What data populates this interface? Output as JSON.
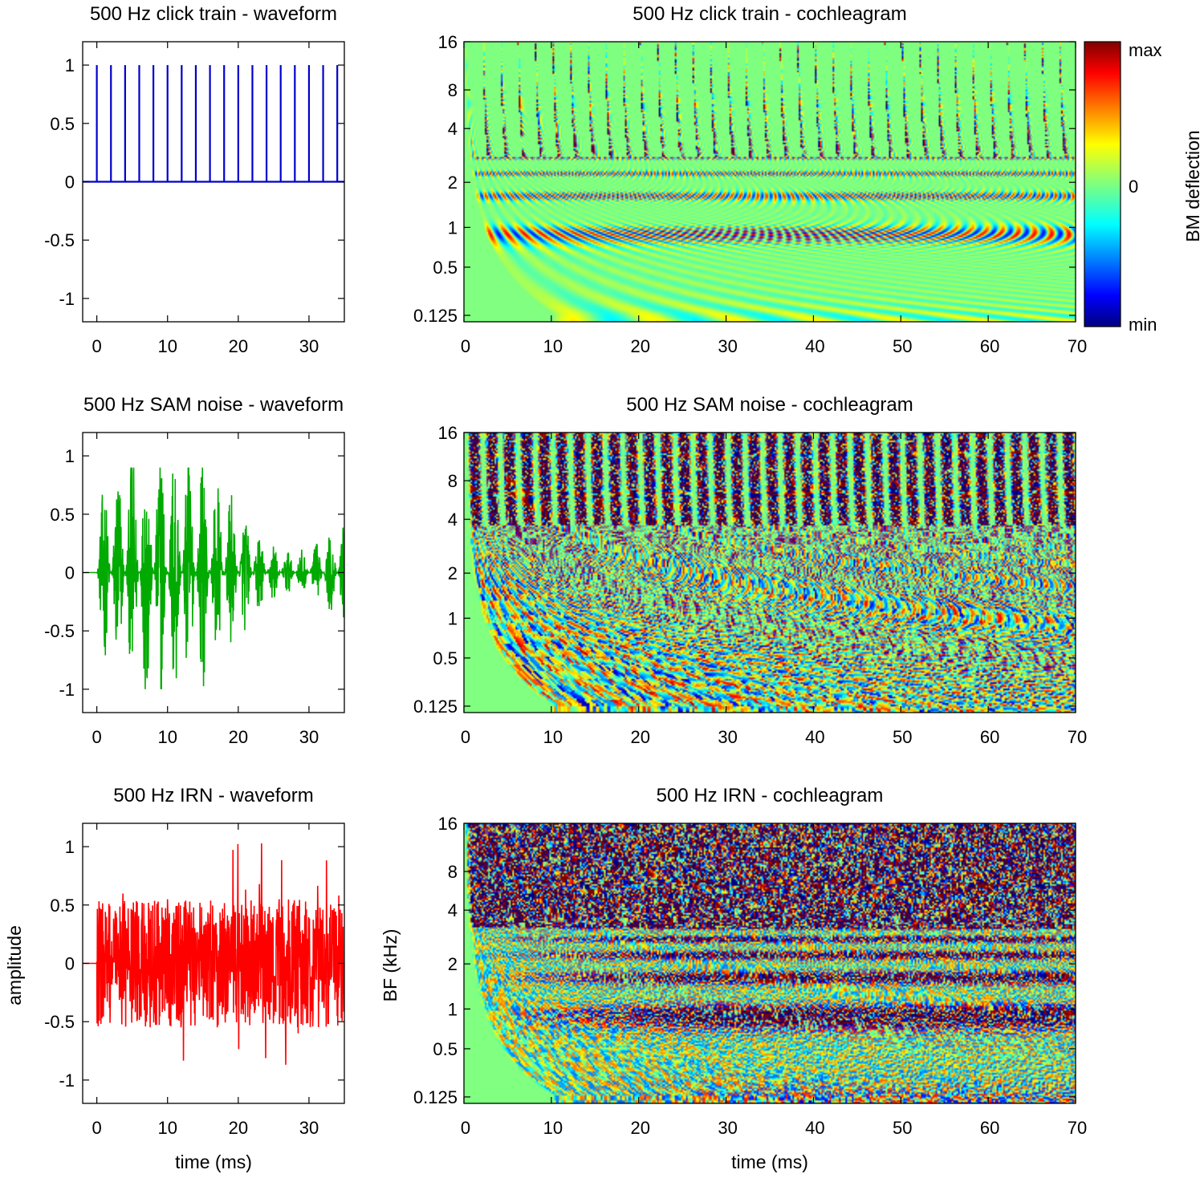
{
  "chart_data": [
    {
      "type": "line",
      "title": "500 Hz click train - waveform",
      "xlabel": "",
      "ylabel": "",
      "xlim": [
        -2,
        35
      ],
      "ylim": [
        -1.2,
        1.2
      ],
      "xticks": [
        0,
        10,
        20,
        30
      ],
      "yticks": [
        1,
        0.5,
        0,
        -0.5,
        -1
      ],
      "color": "#0000cc",
      "series": [
        {
          "kind": "clicks",
          "period_ms": 2,
          "start_ms": 0,
          "end_ms": 34,
          "amplitude": 1
        }
      ]
    },
    {
      "type": "heatmap",
      "title": "500 Hz click train - cochleagram",
      "xlabel": "",
      "ylabel": "",
      "xlim": [
        0,
        70
      ],
      "xticks": [
        0,
        10,
        20,
        30,
        40,
        50,
        60,
        70
      ],
      "yticks": [
        "16",
        "8",
        "4",
        "2",
        "1",
        "0.5",
        "0.125"
      ],
      "pattern": "click"
    },
    {
      "type": "line",
      "title": "500 Hz SAM noise - waveform",
      "xlabel": "",
      "ylabel": "",
      "xlim": [
        -2,
        35
      ],
      "ylim": [
        -1.2,
        1.2
      ],
      "xticks": [
        0,
        10,
        20,
        30
      ],
      "yticks": [
        1,
        0.5,
        0,
        -0.5,
        -1
      ],
      "color": "#00aa00",
      "series": [
        {
          "kind": "sam-noise",
          "modulation_hz": 500,
          "start_ms": 0,
          "end_ms": 35,
          "peak": 0.9,
          "trough": -1.0
        }
      ]
    },
    {
      "type": "heatmap",
      "title": "500 Hz SAM noise - cochleagram",
      "xlabel": "",
      "ylabel": "",
      "xlim": [
        0,
        70
      ],
      "xticks": [
        0,
        10,
        20,
        30,
        40,
        50,
        60,
        70
      ],
      "yticks": [
        "16",
        "8",
        "4",
        "2",
        "1",
        "0.5",
        "0.125"
      ],
      "pattern": "sam"
    },
    {
      "type": "line",
      "title": "500 Hz IRN - waveform",
      "xlabel": "time (ms)",
      "ylabel": "amplitude",
      "xlim": [
        -2,
        35
      ],
      "ylim": [
        -1.2,
        1.2
      ],
      "xticks": [
        0,
        10,
        20,
        30
      ],
      "yticks": [
        1,
        0.5,
        0,
        -0.5,
        -1
      ],
      "color": "#ff0000",
      "series": [
        {
          "kind": "irn-noise",
          "start_ms": 0,
          "end_ms": 35,
          "peak": 1.1,
          "trough": -1.1
        }
      ]
    },
    {
      "type": "heatmap",
      "title": "500 Hz IRN - cochleagram",
      "xlabel": "time (ms)",
      "ylabel": "BF (kHz)",
      "xlim": [
        0,
        70
      ],
      "xticks": [
        0,
        10,
        20,
        30,
        40,
        50,
        60,
        70
      ],
      "yticks": [
        "16",
        "8",
        "4",
        "2",
        "1",
        "0.5",
        "0.125"
      ],
      "pattern": "irn"
    }
  ],
  "colorbar": {
    "label": "BM deflection",
    "ticks": [
      "max",
      "0",
      "min"
    ],
    "colormap": "jet"
  }
}
